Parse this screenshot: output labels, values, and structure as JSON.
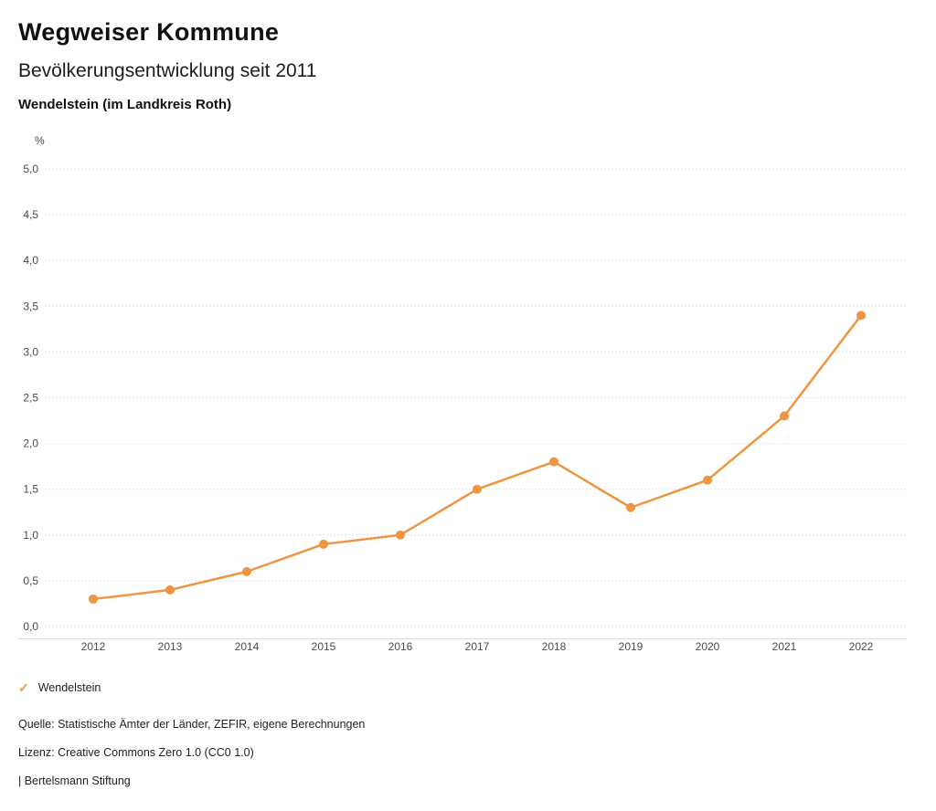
{
  "header": {
    "title": "Wegweiser Kommune",
    "subtitle": "Bevölkerungsentwicklung seit 2011",
    "region": "Wendelstein (im Landkreis Roth)"
  },
  "chart_data": {
    "type": "line",
    "title": "Bevölkerungsentwicklung seit 2011",
    "unit_label": "%",
    "x": [
      2012,
      2013,
      2014,
      2015,
      2016,
      2017,
      2018,
      2019,
      2020,
      2021,
      2022
    ],
    "series": [
      {
        "name": "Wendelstein",
        "values": [
          0.3,
          0.4,
          0.6,
          0.9,
          1.0,
          1.5,
          1.8,
          1.3,
          1.6,
          2.3,
          3.4
        ],
        "color": "#f0953f"
      }
    ],
    "ylim": [
      0,
      5
    ],
    "ytick_step": 0.5,
    "ytick_labels": [
      "0,0",
      "0,5",
      "1,0",
      "1,5",
      "2,0",
      "2,5",
      "3,0",
      "3,5",
      "4,0",
      "4,5",
      "5,0"
    ],
    "grid": "dotted-horizontal",
    "legend_position": "bottom-left"
  },
  "legend": {
    "items": [
      {
        "label": "Wendelstein",
        "color": "#f0953f",
        "marker": "check"
      }
    ]
  },
  "footer": {
    "source": "Quelle: Statistische Ämter der Länder, ZEFIR, eigene Berechnungen",
    "license": "Lizenz: Creative Commons Zero 1.0 (CC0 1.0)",
    "attribution": "| Bertelsmann Stiftung"
  }
}
